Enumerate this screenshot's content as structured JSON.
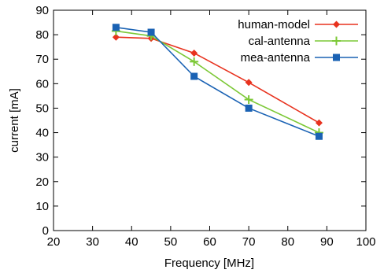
{
  "chart_data": {
    "type": "line",
    "xlabel": "Frequency [MHz]",
    "ylabel": "current [mA]",
    "xlim": [
      20,
      100
    ],
    "ylim": [
      0,
      90
    ],
    "xticks": [
      20,
      30,
      40,
      50,
      60,
      70,
      80,
      90,
      100
    ],
    "yticks": [
      0,
      10,
      20,
      30,
      40,
      50,
      60,
      70,
      80,
      90
    ],
    "grid": false,
    "legend_position": "top-right",
    "series": [
      {
        "name": "human-model",
        "color": "#e8321e",
        "marker": "diamond",
        "x": [
          36,
          45,
          56,
          70,
          88
        ],
        "y": [
          79,
          78.5,
          72.5,
          60.5,
          44
        ]
      },
      {
        "name": "cal-antenna",
        "color": "#7cc836",
        "marker": "plus",
        "x": [
          36,
          45,
          56,
          70,
          88
        ],
        "y": [
          81.5,
          79.5,
          69,
          53.5,
          40
        ]
      },
      {
        "name": "mea-antenna",
        "color": "#1a62b4",
        "marker": "square",
        "x": [
          36,
          45,
          56,
          70,
          88
        ],
        "y": [
          83,
          81,
          63,
          50,
          38.5
        ]
      }
    ]
  }
}
